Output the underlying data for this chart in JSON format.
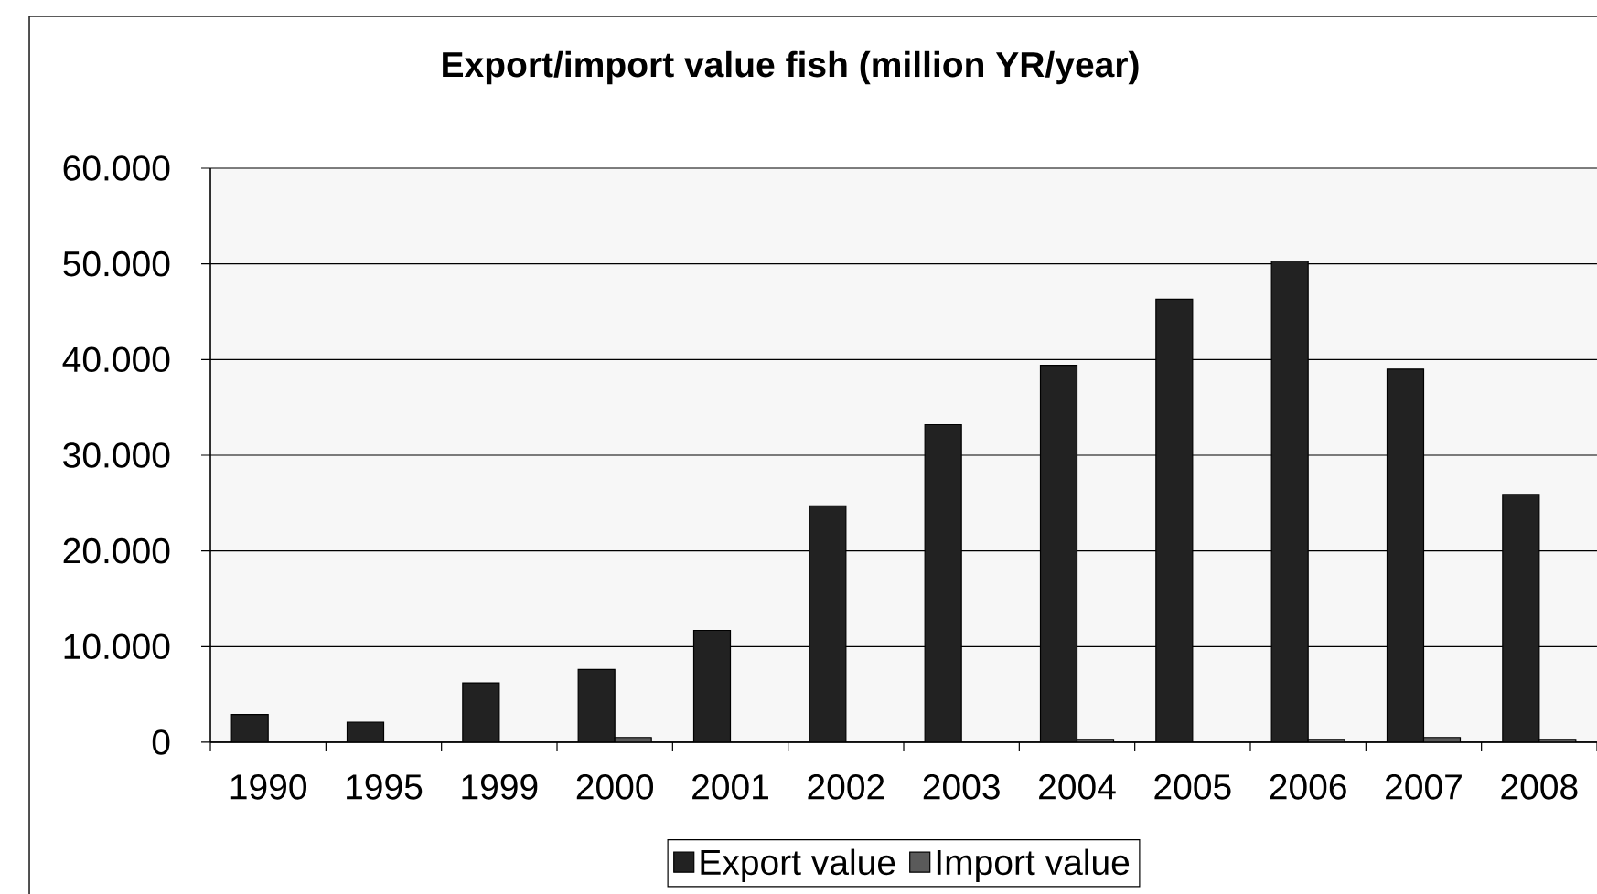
{
  "chart_data": {
    "type": "bar",
    "title": "Export/import value fish (million YR/year)",
    "categories": [
      "1990",
      "1995",
      "1999",
      "2000",
      "2001",
      "2002",
      "2003",
      "2004",
      "2005",
      "2006",
      "2007",
      "2008"
    ],
    "series": [
      {
        "name": "Export value",
        "color": "#222222",
        "values": [
          2900,
          2100,
          6200,
          7600,
          11700,
          24700,
          33200,
          39400,
          46300,
          50300,
          39000,
          25900
        ]
      },
      {
        "name": "Import value",
        "color": "#5a5a5a",
        "values": [
          null,
          null,
          null,
          500,
          null,
          null,
          null,
          300,
          null,
          300,
          500,
          300
        ]
      }
    ],
    "ylim": [
      0,
      60000
    ],
    "yticks": [
      0,
      {
        "value": 10000,
        "label": "10.000"
      },
      {
        "value": 20000,
        "label": "20.000"
      },
      {
        "value": 30000,
        "label": "30.000"
      },
      {
        "value": 40000,
        "label": "40.000"
      },
      {
        "value": 50000,
        "label": "50.000"
      },
      {
        "value": 60000,
        "label": "60.000"
      }
    ],
    "grid": "y",
    "legend": "bottom"
  }
}
